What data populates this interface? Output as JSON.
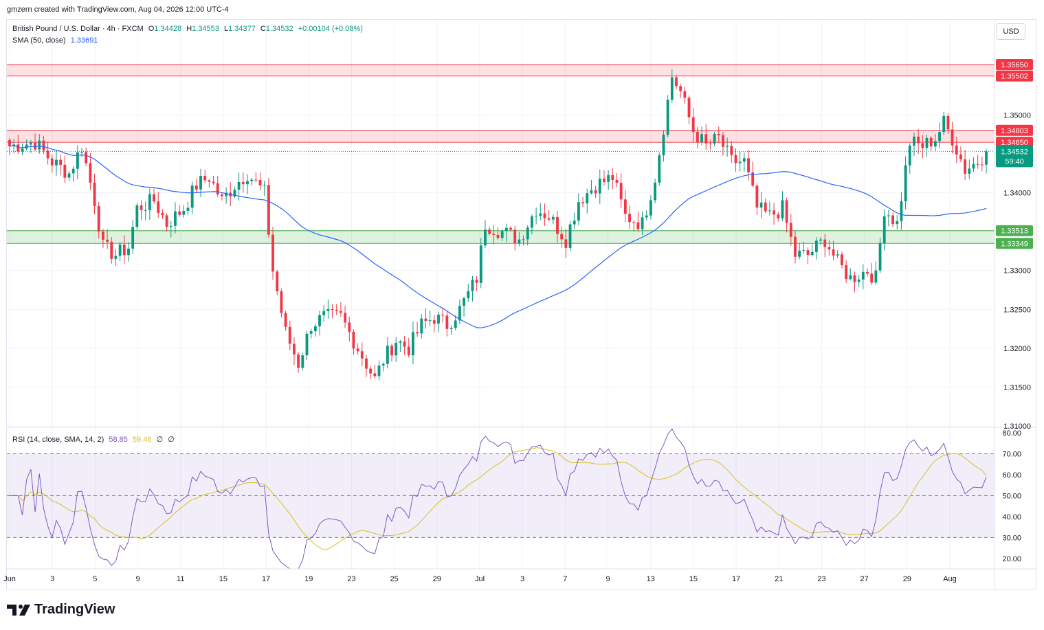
{
  "header": {
    "credit": "gmzern created with TradingView.com, Aug 04, 2026 12:00 UTC-4"
  },
  "legend": {
    "symbol": "British Pound / U.S. Dollar · 4h · FXCM",
    "open_label": "O",
    "open": "1.34428",
    "high_label": "H",
    "high": "1.34553",
    "low_label": "L",
    "low": "1.34377",
    "close_label": "C",
    "close": "1.34532",
    "change": "+0.00104 (+0.08%)",
    "sma_label": "SMA (50, close)",
    "sma_value": "1.33691",
    "rsi_label": "RSI (14, close, SMA, 14, 2)",
    "rsi_value": "58.85",
    "rsi_sma_value": "59.46",
    "rsi_extra1": "∅",
    "rsi_extra2": "∅"
  },
  "currency_button": "USD",
  "countdown": "59:40",
  "brand": "TradingView",
  "colors": {
    "up": "#089981",
    "down": "#f23645",
    "sma": "#2962ff",
    "rsi": "#7e57c2",
    "rsi_sma": "#d4c11f",
    "resistance_zone": "#f23645",
    "support_zone": "#4caf50"
  },
  "chart_data": [
    {
      "type": "candlestick",
      "title": "British Pound / U.S. Dollar · 4h · FXCM",
      "ylim": [
        1.31,
        1.3595
      ],
      "y_ticks": [
        "1.31000",
        "1.31500",
        "1.32000",
        "1.32500",
        "1.33000",
        "1.33500",
        "1.34000",
        "1.34500",
        "1.35000"
      ],
      "x_tick_labels": [
        "Jun",
        "3",
        "5",
        "9",
        "11",
        "15",
        "17",
        "19",
        "23",
        "25",
        "29",
        "Jul",
        "3",
        "7",
        "9",
        "13",
        "15",
        "17",
        "21",
        "23",
        "27",
        "29",
        "Aug"
      ],
      "sma_period": 50,
      "last_price": 1.34532,
      "zones": [
        {
          "top": 1.3565,
          "bottom": 1.35502,
          "top_label": "1.35650",
          "bottom_label": "1.35502",
          "kind": "resistance"
        },
        {
          "top": 1.34803,
          "bottom": 1.3465,
          "top_label": "1.34803",
          "bottom_label": "1.34650",
          "kind": "resistance"
        },
        {
          "top": 1.33513,
          "bottom": 1.33349,
          "top_label": "1.33513",
          "bottom_label": "1.33349",
          "kind": "support"
        }
      ],
      "close_path": [
        [
          0,
          1.346
        ],
        [
          6,
          1.3465
        ],
        [
          10,
          1.344
        ],
        [
          14,
          1.3425
        ],
        [
          17,
          1.346
        ],
        [
          20,
          1.339
        ],
        [
          22,
          1.333
        ],
        [
          25,
          1.332
        ],
        [
          28,
          1.333
        ],
        [
          30,
          1.338
        ],
        [
          34,
          1.339
        ],
        [
          37,
          1.336
        ],
        [
          41,
          1.338
        ],
        [
          44,
          1.341
        ],
        [
          47,
          1.342
        ],
        [
          50,
          1.339
        ],
        [
          53,
          1.341
        ],
        [
          56,
          1.3425
        ],
        [
          60,
          1.34
        ],
        [
          62,
          1.33
        ],
        [
          65,
          1.322
        ],
        [
          68,
          1.318
        ],
        [
          71,
          1.323
        ],
        [
          74,
          1.324
        ],
        [
          78,
          1.324
        ],
        [
          82,
          1.32
        ],
        [
          86,
          1.316
        ],
        [
          88,
          1.3185
        ],
        [
          91,
          1.321
        ],
        [
          94,
          1.32
        ],
        [
          97,
          1.323
        ],
        [
          100,
          1.324
        ],
        [
          103,
          1.323
        ],
        [
          106,
          1.325
        ],
        [
          110,
          1.329
        ],
        [
          112,
          1.336
        ],
        [
          116,
          1.335
        ],
        [
          120,
          1.334
        ],
        [
          124,
          1.338
        ],
        [
          127,
          1.337
        ],
        [
          131,
          1.334
        ],
        [
          134,
          1.339
        ],
        [
          138,
          1.341
        ],
        [
          142,
          1.342
        ],
        [
          145,
          1.337
        ],
        [
          149,
          1.336
        ],
        [
          152,
          1.342
        ],
        [
          156,
          1.355
        ],
        [
          158,
          1.353
        ],
        [
          161,
          1.348
        ],
        [
          164,
          1.346
        ],
        [
          167,
          1.347
        ],
        [
          170,
          1.344
        ],
        [
          173,
          1.344
        ],
        [
          176,
          1.338
        ],
        [
          179,
          1.337
        ],
        [
          182,
          1.338
        ],
        [
          185,
          1.332
        ],
        [
          188,
          1.332
        ],
        [
          192,
          1.334
        ],
        [
          195,
          1.331
        ],
        [
          198,
          1.329
        ],
        [
          202,
          1.33
        ],
        [
          204,
          1.329
        ],
        [
          206,
          1.338
        ],
        [
          209,
          1.336
        ],
        [
          212,
          1.3465
        ],
        [
          215,
          1.346
        ],
        [
          218,
          1.347
        ],
        [
          220,
          1.349
        ],
        [
          222,
          1.347
        ],
        [
          225,
          1.343
        ],
        [
          228,
          1.344
        ],
        [
          230,
          1.3453
        ]
      ],
      "candle_count": 231
    },
    {
      "type": "line",
      "title": "RSI (14, close, SMA, 14, 2)",
      "ylim": [
        15,
        82
      ],
      "y_ticks": [
        "20.00",
        "30.00",
        "40.00",
        "50.00",
        "60.00",
        "70.00",
        "80.00"
      ],
      "bands": [
        30,
        50,
        70
      ],
      "series": [
        {
          "name": "RSI",
          "last": 58.85
        },
        {
          "name": "RSI SMA",
          "last": 59.46
        }
      ]
    }
  ]
}
